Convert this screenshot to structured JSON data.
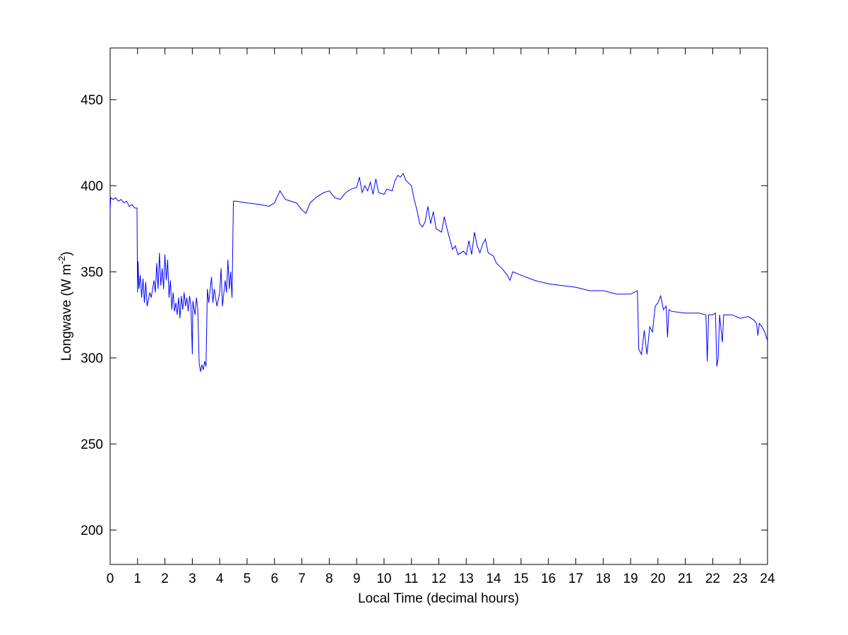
{
  "chart_data": {
    "type": "line",
    "x_label": "Local Time (decimal hours)",
    "y_label": {
      "text": "Longwave (W m",
      "superscript": "-2",
      "suffix": ")"
    },
    "color": "#0000ff",
    "xlim": [
      0,
      24
    ],
    "xticks": [
      0,
      1,
      2,
      3,
      4,
      5,
      6,
      7,
      8,
      9,
      10,
      11,
      12,
      13,
      14,
      15,
      16,
      17,
      18,
      19,
      20,
      21,
      22,
      23,
      24
    ],
    "ylim": [
      180,
      480
    ],
    "yticks": [
      200,
      250,
      300,
      350,
      400,
      450
    ],
    "grid": false,
    "x": [
      0,
      0.02,
      0.1,
      0.2,
      0.3,
      0.4,
      0.5,
      0.6,
      0.7,
      0.8,
      0.9,
      0.98,
      1.0,
      1.02,
      1.05,
      1.1,
      1.15,
      1.2,
      1.25,
      1.3,
      1.35,
      1.45,
      1.5,
      1.6,
      1.65,
      1.7,
      1.75,
      1.8,
      1.85,
      1.9,
      1.95,
      2.0,
      2.05,
      2.1,
      2.15,
      2.2,
      2.25,
      2.3,
      2.35,
      2.4,
      2.45,
      2.5,
      2.55,
      2.6,
      2.65,
      2.7,
      2.75,
      2.8,
      2.85,
      2.9,
      2.95,
      3.0,
      3.02,
      3.1,
      3.15,
      3.2,
      3.25,
      3.3,
      3.35,
      3.4,
      3.45,
      3.5,
      3.55,
      3.6,
      3.7,
      3.75,
      3.8,
      3.9,
      4.0,
      4.05,
      4.1,
      4.2,
      4.25,
      4.3,
      4.35,
      4.4,
      4.45,
      4.5,
      4.6,
      5.0,
      5.5,
      5.8,
      6.0,
      6.2,
      6.4,
      6.6,
      6.8,
      7.0,
      7.15,
      7.3,
      7.5,
      7.8,
      8.0,
      8.2,
      8.4,
      8.6,
      8.8,
      9.0,
      9.1,
      9.2,
      9.3,
      9.4,
      9.5,
      9.6,
      9.7,
      9.8,
      10.0,
      10.1,
      10.3,
      10.4,
      10.5,
      10.6,
      10.7,
      10.8,
      11.0,
      11.1,
      11.2,
      11.3,
      11.4,
      11.5,
      11.6,
      11.7,
      11.8,
      11.9,
      12.1,
      12.2,
      12.3,
      12.5,
      12.6,
      12.7,
      12.9,
      13.0,
      13.1,
      13.2,
      13.3,
      13.4,
      13.5,
      13.6,
      13.7,
      13.8,
      14.0,
      14.1,
      14.3,
      14.5,
      14.6,
      14.7,
      15.0,
      15.5,
      16.0,
      16.5,
      17.0,
      17.5,
      18.0,
      18.5,
      19.0,
      19.25,
      19.3,
      19.4,
      19.5,
      19.6,
      19.7,
      19.8,
      19.9,
      20.0,
      20.1,
      20.2,
      20.3,
      20.35,
      20.4,
      20.5,
      21.0,
      21.5,
      21.75,
      21.8,
      21.85,
      22.0,
      22.1,
      22.15,
      22.2,
      22.25,
      22.35,
      22.4,
      22.7,
      23.0,
      23.3,
      23.5,
      23.6,
      23.65,
      23.7,
      23.8,
      23.9,
      24.0
    ],
    "values": [
      386,
      393,
      392,
      393,
      391,
      392,
      390,
      391,
      388,
      389,
      387,
      387,
      338,
      356,
      340,
      348,
      335,
      346,
      332,
      344,
      330,
      338,
      335,
      345,
      338,
      355,
      340,
      361,
      342,
      352,
      340,
      360,
      345,
      357,
      335,
      345,
      328,
      338,
      327,
      332,
      325,
      335,
      323,
      336,
      328,
      338,
      330,
      335,
      327,
      336,
      330,
      302,
      333,
      325,
      335,
      328,
      297,
      292,
      296,
      293,
      298,
      295,
      340,
      332,
      347,
      332,
      340,
      330,
      338,
      352,
      330,
      345,
      338,
      357,
      340,
      350,
      335,
      391,
      391,
      390,
      389,
      388,
      390,
      397,
      392,
      391,
      390,
      386,
      384,
      390,
      393,
      396,
      397,
      393,
      392,
      396,
      398,
      399,
      405,
      396,
      400,
      397,
      402,
      395,
      404,
      396,
      395,
      398,
      397,
      403,
      406,
      405,
      407,
      403,
      400,
      392,
      386,
      378,
      376,
      379,
      388,
      378,
      385,
      375,
      373,
      382,
      375,
      363,
      365,
      360,
      362,
      360,
      368,
      360,
      373,
      365,
      361,
      366,
      369,
      361,
      359,
      355,
      352,
      348,
      345,
      350,
      348,
      345,
      343,
      342,
      341,
      339,
      339,
      337,
      337,
      339,
      305,
      302,
      316,
      302,
      318,
      315,
      330,
      332,
      336,
      328,
      330,
      312,
      328,
      327,
      326,
      326,
      325,
      298,
      325,
      325,
      326,
      295,
      300,
      325,
      309,
      325,
      325,
      323,
      324,
      322,
      320,
      313,
      320,
      318,
      315,
      310
    ]
  }
}
